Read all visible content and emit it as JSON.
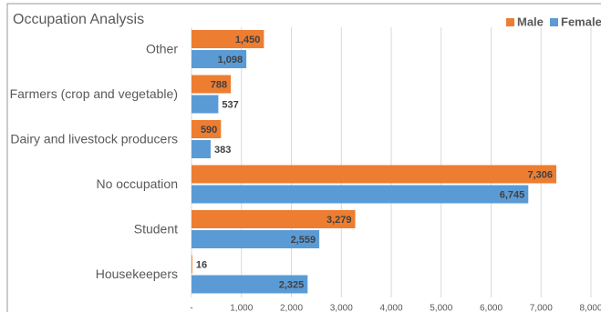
{
  "chart_data": {
    "type": "bar",
    "orientation": "horizontal",
    "title": "Occupation Analysis",
    "categories": [
      "Other",
      "Farmers (crop and vegetable)",
      "Dairy and livestock producers",
      "No occupation",
      "Student",
      "Housekeepers"
    ],
    "series": [
      {
        "name": "Male",
        "color": "#ed7d31",
        "values": [
          1450,
          788,
          590,
          7306,
          3279,
          16
        ],
        "value_labels": [
          "1,450",
          "788",
          "590",
          "7,306",
          "3,279",
          "16"
        ]
      },
      {
        "name": "Female",
        "color": "#5b9bd5",
        "values": [
          1098,
          537,
          383,
          6745,
          2559,
          2325
        ],
        "value_labels": [
          "1,098",
          "537",
          "383",
          "6,745",
          "2,559",
          "2,325"
        ]
      }
    ],
    "xlim": [
      0,
      8000
    ],
    "xticks": [
      {
        "value": 0,
        "label": "-"
      },
      {
        "value": 1000,
        "label": "1,000"
      },
      {
        "value": 2000,
        "label": "2,000"
      },
      {
        "value": 3000,
        "label": "3,000"
      },
      {
        "value": 4000,
        "label": "4,000"
      },
      {
        "value": 5000,
        "label": "5,000"
      },
      {
        "value": 6000,
        "label": "6,000"
      },
      {
        "value": 7000,
        "label": "7,000"
      },
      {
        "value": 8000,
        "label": "8,000"
      }
    ],
    "grid": true,
    "legend": "top-right"
  }
}
